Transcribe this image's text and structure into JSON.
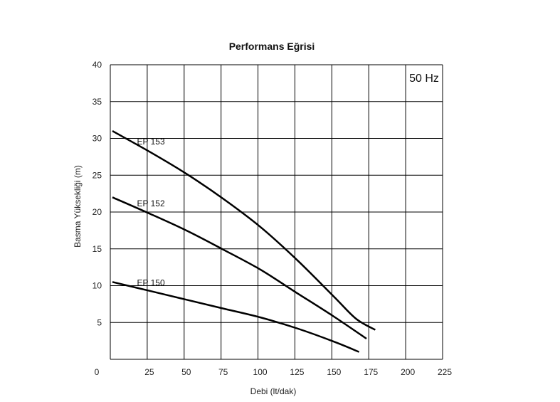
{
  "chart_data": {
    "type": "line",
    "title": "Performans Eğrisi",
    "xlabel": "Debi (lt/dak)",
    "ylabel": "Basma Yüksekliği (m)",
    "annotation": "50 Hz",
    "xlim": [
      0,
      225
    ],
    "ylim": [
      0,
      40
    ],
    "x_ticks": [
      0,
      25,
      50,
      75,
      100,
      125,
      150,
      175,
      200,
      225
    ],
    "y_ticks": [
      5,
      10,
      15,
      20,
      25,
      30,
      35,
      40
    ],
    "grid": true,
    "series": [
      {
        "name": "EP 153",
        "points": [
          [
            0,
            31
          ],
          [
            25,
            28.2
          ],
          [
            50,
            25.2
          ],
          [
            75,
            21.8
          ],
          [
            100,
            18
          ],
          [
            125,
            13.5
          ],
          [
            150,
            8.5
          ],
          [
            165,
            5.5
          ],
          [
            178,
            4
          ]
        ]
      },
      {
        "name": "EP 152",
        "points": [
          [
            0,
            22
          ],
          [
            25,
            19.8
          ],
          [
            50,
            17.5
          ],
          [
            75,
            14.9
          ],
          [
            100,
            12.2
          ],
          [
            125,
            9
          ],
          [
            150,
            5.8
          ],
          [
            172,
            2.8
          ]
        ]
      },
      {
        "name": "EP 150",
        "points": [
          [
            0,
            10.5
          ],
          [
            25,
            9.3
          ],
          [
            50,
            8.1
          ],
          [
            75,
            6.9
          ],
          [
            100,
            5.7
          ],
          [
            125,
            4.2
          ],
          [
            150,
            2.4
          ],
          [
            167,
            1
          ]
        ]
      }
    ]
  }
}
